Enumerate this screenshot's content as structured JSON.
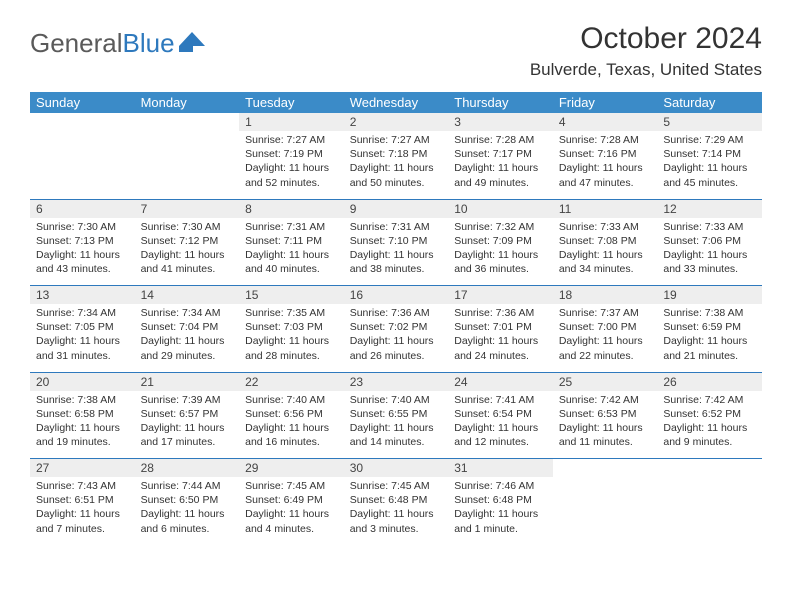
{
  "logo": {
    "text1": "General",
    "text2": "Blue"
  },
  "title": "October 2024",
  "location": "Bulverde, Texas, United States",
  "colors": {
    "header_bg": "#3b8bc8",
    "header_fg": "#ffffff",
    "daynum_bg": "#eeeeee",
    "rule": "#2e79bd",
    "text": "#333333",
    "logo_gray": "#5a5a5a",
    "logo_blue": "#2e79bd"
  },
  "dow": [
    "Sunday",
    "Monday",
    "Tuesday",
    "Wednesday",
    "Thursday",
    "Friday",
    "Saturday"
  ],
  "weeks": [
    [
      null,
      null,
      {
        "n": "1",
        "sr": "Sunrise: 7:27 AM",
        "ss": "Sunset: 7:19 PM",
        "dl": "Daylight: 11 hours and 52 minutes."
      },
      {
        "n": "2",
        "sr": "Sunrise: 7:27 AM",
        "ss": "Sunset: 7:18 PM",
        "dl": "Daylight: 11 hours and 50 minutes."
      },
      {
        "n": "3",
        "sr": "Sunrise: 7:28 AM",
        "ss": "Sunset: 7:17 PM",
        "dl": "Daylight: 11 hours and 49 minutes."
      },
      {
        "n": "4",
        "sr": "Sunrise: 7:28 AM",
        "ss": "Sunset: 7:16 PM",
        "dl": "Daylight: 11 hours and 47 minutes."
      },
      {
        "n": "5",
        "sr": "Sunrise: 7:29 AM",
        "ss": "Sunset: 7:14 PM",
        "dl": "Daylight: 11 hours and 45 minutes."
      }
    ],
    [
      {
        "n": "6",
        "sr": "Sunrise: 7:30 AM",
        "ss": "Sunset: 7:13 PM",
        "dl": "Daylight: 11 hours and 43 minutes."
      },
      {
        "n": "7",
        "sr": "Sunrise: 7:30 AM",
        "ss": "Sunset: 7:12 PM",
        "dl": "Daylight: 11 hours and 41 minutes."
      },
      {
        "n": "8",
        "sr": "Sunrise: 7:31 AM",
        "ss": "Sunset: 7:11 PM",
        "dl": "Daylight: 11 hours and 40 minutes."
      },
      {
        "n": "9",
        "sr": "Sunrise: 7:31 AM",
        "ss": "Sunset: 7:10 PM",
        "dl": "Daylight: 11 hours and 38 minutes."
      },
      {
        "n": "10",
        "sr": "Sunrise: 7:32 AM",
        "ss": "Sunset: 7:09 PM",
        "dl": "Daylight: 11 hours and 36 minutes."
      },
      {
        "n": "11",
        "sr": "Sunrise: 7:33 AM",
        "ss": "Sunset: 7:08 PM",
        "dl": "Daylight: 11 hours and 34 minutes."
      },
      {
        "n": "12",
        "sr": "Sunrise: 7:33 AM",
        "ss": "Sunset: 7:06 PM",
        "dl": "Daylight: 11 hours and 33 minutes."
      }
    ],
    [
      {
        "n": "13",
        "sr": "Sunrise: 7:34 AM",
        "ss": "Sunset: 7:05 PM",
        "dl": "Daylight: 11 hours and 31 minutes."
      },
      {
        "n": "14",
        "sr": "Sunrise: 7:34 AM",
        "ss": "Sunset: 7:04 PM",
        "dl": "Daylight: 11 hours and 29 minutes."
      },
      {
        "n": "15",
        "sr": "Sunrise: 7:35 AM",
        "ss": "Sunset: 7:03 PM",
        "dl": "Daylight: 11 hours and 28 minutes."
      },
      {
        "n": "16",
        "sr": "Sunrise: 7:36 AM",
        "ss": "Sunset: 7:02 PM",
        "dl": "Daylight: 11 hours and 26 minutes."
      },
      {
        "n": "17",
        "sr": "Sunrise: 7:36 AM",
        "ss": "Sunset: 7:01 PM",
        "dl": "Daylight: 11 hours and 24 minutes."
      },
      {
        "n": "18",
        "sr": "Sunrise: 7:37 AM",
        "ss": "Sunset: 7:00 PM",
        "dl": "Daylight: 11 hours and 22 minutes."
      },
      {
        "n": "19",
        "sr": "Sunrise: 7:38 AM",
        "ss": "Sunset: 6:59 PM",
        "dl": "Daylight: 11 hours and 21 minutes."
      }
    ],
    [
      {
        "n": "20",
        "sr": "Sunrise: 7:38 AM",
        "ss": "Sunset: 6:58 PM",
        "dl": "Daylight: 11 hours and 19 minutes."
      },
      {
        "n": "21",
        "sr": "Sunrise: 7:39 AM",
        "ss": "Sunset: 6:57 PM",
        "dl": "Daylight: 11 hours and 17 minutes."
      },
      {
        "n": "22",
        "sr": "Sunrise: 7:40 AM",
        "ss": "Sunset: 6:56 PM",
        "dl": "Daylight: 11 hours and 16 minutes."
      },
      {
        "n": "23",
        "sr": "Sunrise: 7:40 AM",
        "ss": "Sunset: 6:55 PM",
        "dl": "Daylight: 11 hours and 14 minutes."
      },
      {
        "n": "24",
        "sr": "Sunrise: 7:41 AM",
        "ss": "Sunset: 6:54 PM",
        "dl": "Daylight: 11 hours and 12 minutes."
      },
      {
        "n": "25",
        "sr": "Sunrise: 7:42 AM",
        "ss": "Sunset: 6:53 PM",
        "dl": "Daylight: 11 hours and 11 minutes."
      },
      {
        "n": "26",
        "sr": "Sunrise: 7:42 AM",
        "ss": "Sunset: 6:52 PM",
        "dl": "Daylight: 11 hours and 9 minutes."
      }
    ],
    [
      {
        "n": "27",
        "sr": "Sunrise: 7:43 AM",
        "ss": "Sunset: 6:51 PM",
        "dl": "Daylight: 11 hours and 7 minutes."
      },
      {
        "n": "28",
        "sr": "Sunrise: 7:44 AM",
        "ss": "Sunset: 6:50 PM",
        "dl": "Daylight: 11 hours and 6 minutes."
      },
      {
        "n": "29",
        "sr": "Sunrise: 7:45 AM",
        "ss": "Sunset: 6:49 PM",
        "dl": "Daylight: 11 hours and 4 minutes."
      },
      {
        "n": "30",
        "sr": "Sunrise: 7:45 AM",
        "ss": "Sunset: 6:48 PM",
        "dl": "Daylight: 11 hours and 3 minutes."
      },
      {
        "n": "31",
        "sr": "Sunrise: 7:46 AM",
        "ss": "Sunset: 6:48 PM",
        "dl": "Daylight: 11 hours and 1 minute."
      },
      null,
      null
    ]
  ]
}
